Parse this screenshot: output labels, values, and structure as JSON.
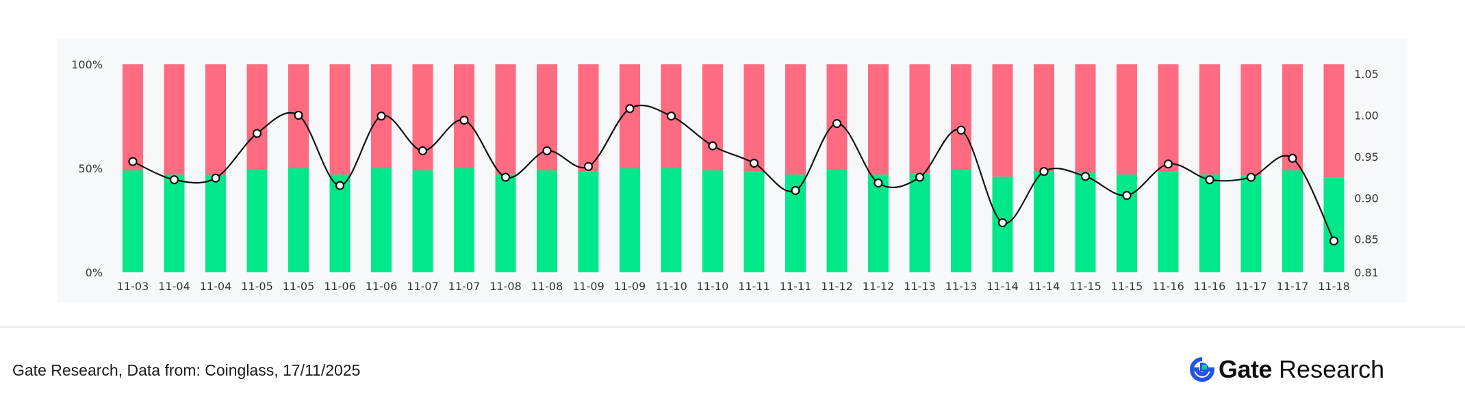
{
  "chart_data": {
    "type": "bar",
    "stacked": true,
    "categories": [
      "11-03",
      "11-04",
      "11-04",
      "11-05",
      "11-05",
      "11-06",
      "11-06",
      "11-07",
      "11-07",
      "11-08",
      "11-08",
      "11-09",
      "11-09",
      "11-10",
      "11-10",
      "11-11",
      "11-11",
      "11-12",
      "11-12",
      "11-13",
      "11-13",
      "11-14",
      "11-14",
      "11-15",
      "11-15",
      "11-16",
      "11-16",
      "11-17",
      "11-17",
      "11-18"
    ],
    "series": [
      {
        "role": "long",
        "axis": "left",
        "color": "#00e88a",
        "values": [
          49,
          47,
          47,
          49.5,
          50,
          47,
          50,
          49,
          50,
          47,
          49,
          48.5,
          50,
          50,
          49,
          48.5,
          47,
          49.5,
          47,
          47.5,
          49.5,
          46,
          48.5,
          48,
          47,
          48.5,
          47,
          46.5,
          49,
          45.5
        ]
      },
      {
        "role": "short",
        "axis": "left",
        "color": "#ff6b80",
        "values": [
          51,
          53,
          53,
          50.5,
          50,
          53,
          50,
          51,
          50,
          53,
          51,
          51.5,
          50,
          50,
          51,
          51.5,
          53,
          50.5,
          53,
          52.5,
          50.5,
          54,
          51.5,
          52,
          53,
          51.5,
          53,
          53.5,
          51,
          54.5
        ]
      },
      {
        "type": "line",
        "axis": "right",
        "color": "#111111",
        "values": [
          0.944,
          0.922,
          0.924,
          0.978,
          1.0,
          0.915,
          0.999,
          0.957,
          0.994,
          0.925,
          0.957,
          0.938,
          1.008,
          0.999,
          0.963,
          0.942,
          0.909,
          0.99,
          0.918,
          0.925,
          0.982,
          0.87,
          0.932,
          0.926,
          0.903,
          0.941,
          0.922,
          0.925,
          0.948,
          0.848
        ]
      }
    ],
    "y_left": {
      "ticks": [
        "0%",
        "50%",
        "100%"
      ],
      "ylim": [
        0,
        100
      ]
    },
    "y_right": {
      "ticks": [
        "0.81",
        "0.85",
        "0.90",
        "0.95",
        "1.00",
        "1.05"
      ],
      "tick_values": [
        0.81,
        0.85,
        0.9,
        0.95,
        1.0,
        1.05
      ],
      "ylim": [
        0.81,
        1.05
      ]
    },
    "grid": false
  },
  "footer": {
    "source_note": "Gate Research, Data from: Coinglass, 17/11/2025",
    "brand_name": "Gate",
    "brand_suffix": "Research",
    "brand_icon": "gate-logo-icon",
    "brand_color": "#2354e6"
  }
}
